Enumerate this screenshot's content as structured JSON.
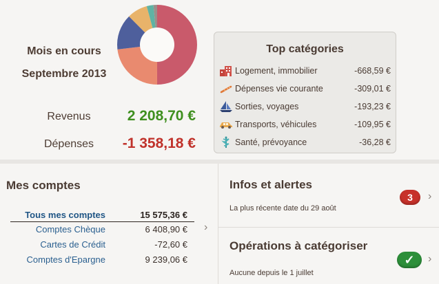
{
  "summary": {
    "period_line1": "Mois en cours",
    "period_line2": "Septembre 2013",
    "revenus_label": "Revenus",
    "revenus_value": "2 208,70 €",
    "depenses_label": "Dépenses",
    "depenses_value": "-1 358,18 €"
  },
  "donut": {
    "icon": "donut-chart",
    "slices": [
      {
        "value": 668.59,
        "color": "#c95a6b"
      },
      {
        "value": 309.01,
        "color": "#e98a6f"
      },
      {
        "value": 193.23,
        "color": "#4e5f9c"
      },
      {
        "value": 109.95,
        "color": "#e8b36a"
      },
      {
        "value": 36.28,
        "color": "#5fb3a4"
      },
      {
        "value": 20,
        "color": "#9a8f8a"
      }
    ]
  },
  "top_categories": {
    "title": "Top catégories",
    "items": [
      {
        "label": "Logement, immobilier",
        "amount": "-668,59 €",
        "icon": "house-icon"
      },
      {
        "label": "Dépenses vie courante",
        "amount": "-309,01 €",
        "icon": "baguette-icon"
      },
      {
        "label": "Sorties, voyages",
        "amount": "-193,23 €",
        "icon": "sailboat-icon"
      },
      {
        "label": "Transports, véhicules",
        "amount": "-109,95 €",
        "icon": "car-icon"
      },
      {
        "label": "Santé, prévoyance",
        "amount": "-36,28 €",
        "icon": "caduceus-icon"
      }
    ]
  },
  "mes_comptes": {
    "title": "Mes comptes",
    "total": {
      "label": "Tous mes comptes",
      "value": "15 575,36 €"
    },
    "accounts": [
      {
        "label": "Comptes Chèque",
        "value": "6 408,90 €"
      },
      {
        "label": "Cartes de Crédit",
        "value": "-72,60 €"
      },
      {
        "label": "Comptes d'Epargne",
        "value": "9 239,06 €"
      }
    ]
  },
  "infos": {
    "title": "Infos et alertes",
    "subtitle": "La plus récente date du 29 août",
    "badge": "3"
  },
  "operations": {
    "title": "Opérations à catégoriser",
    "subtitle": "Aucune depuis le 1 juillet",
    "badge": "✓"
  },
  "colors": {
    "revenus": "#3f8f1f",
    "depenses": "#c0322b",
    "link_blue": "#2a5f8f",
    "badge_red": "#c7312a",
    "badge_green": "#2d8f3a"
  }
}
